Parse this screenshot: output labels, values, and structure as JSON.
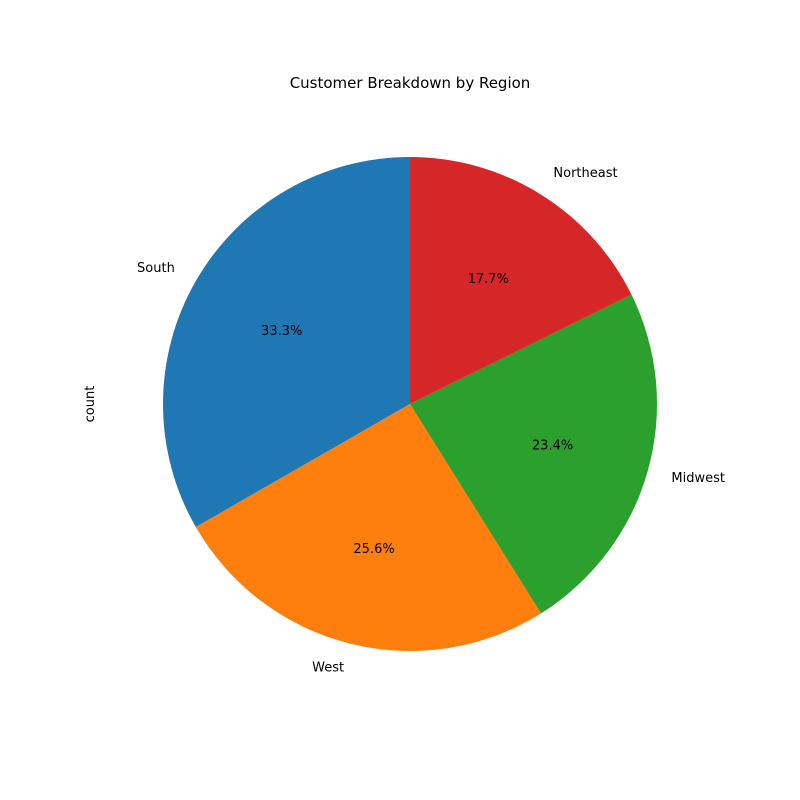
{
  "chart_data": {
    "type": "pie",
    "title": "Customer Breakdown by Region",
    "ylabel": "count",
    "start_angle_deg": 90,
    "direction": "counterclockwise",
    "slices": [
      {
        "name": "South",
        "value": 33.3,
        "pct_label": "33.3%",
        "color": "#1f77b4"
      },
      {
        "name": "West",
        "value": 25.6,
        "pct_label": "25.6%",
        "color": "#ff7f0e"
      },
      {
        "name": "Midwest",
        "value": 23.4,
        "pct_label": "23.4%",
        "color": "#2ca02c"
      },
      {
        "name": "Northeast",
        "value": 17.7,
        "pct_label": "17.7%",
        "color": "#d62728"
      }
    ]
  }
}
